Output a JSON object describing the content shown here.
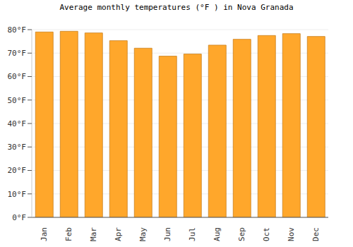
{
  "chart_data": {
    "type": "bar",
    "title": "Average monthly temperatures (°F ) in Nova Granada",
    "categories": [
      "Jan",
      "Feb",
      "Mar",
      "Apr",
      "May",
      "Jun",
      "Jul",
      "Aug",
      "Sep",
      "Oct",
      "Nov",
      "Dec"
    ],
    "values": [
      79.0,
      79.3,
      78.6,
      75.3,
      72.1,
      68.7,
      69.6,
      73.4,
      75.9,
      77.5,
      78.3,
      77.1
    ],
    "color": "#ffa72b",
    "ylim": [
      0,
      80
    ],
    "yticks": [
      {
        "value": 0,
        "label": "0°F"
      },
      {
        "value": 10,
        "label": "10°F"
      },
      {
        "value": 20,
        "label": "20°F"
      },
      {
        "value": 30,
        "label": "30°F"
      },
      {
        "value": 40,
        "label": "40°F"
      },
      {
        "value": 50,
        "label": "50°F"
      },
      {
        "value": 60,
        "label": "60°F"
      },
      {
        "value": 70,
        "label": "70°F"
      },
      {
        "value": 80,
        "label": "80°F"
      }
    ],
    "grid": true
  }
}
